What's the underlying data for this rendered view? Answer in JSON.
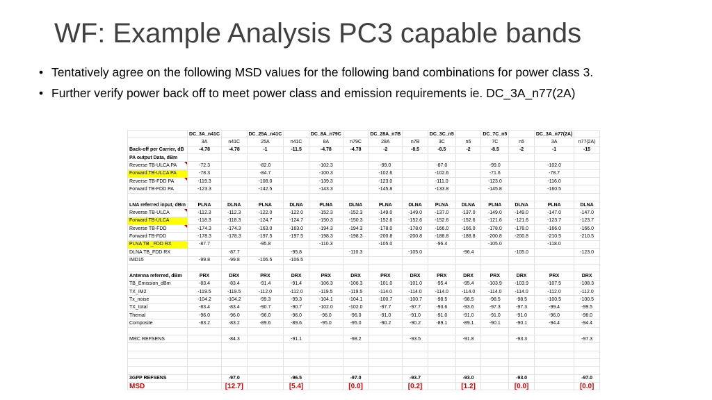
{
  "slide": {
    "title": "WF: Example Analysis PC3 capable bands",
    "bullets": [
      "Tentatively agree on the following MSD values for the following band combinations for power class 3.",
      "Further verify power back off to meet power class and emission requirements ie. DC_3A_n77(2A)"
    ]
  },
  "table": {
    "rows": [
      {
        "style": "b",
        "cells": [
          "",
          "DC_3A_n41C",
          "",
          "DC_25A_n41C",
          "",
          "DC_8A_n79C",
          "",
          "DC_28A_n7B",
          "",
          "DC_3C_n5",
          "",
          "DC_7C_n5",
          "",
          "DC_3A_n77(2A)",
          ""
        ]
      },
      {
        "style": "",
        "cells": [
          "",
          "3A",
          "n41C",
          "25A",
          "n41C",
          "8A",
          "n79C",
          "28A",
          "n7B",
          "3C",
          "n5",
          "7C",
          "n5",
          "3A",
          "n77(2A)"
        ]
      },
      {
        "style": "b",
        "cells": [
          "Back-off per Carrier, dB",
          "-4.78",
          "-4.78",
          "-1",
          "-11.5",
          "-4.78",
          "-4.78",
          "-2",
          "-8.5",
          "-8.5",
          "-2",
          "-8.5",
          "-2",
          "-1",
          "-15"
        ]
      },
      {
        "style": "b",
        "cells": [
          "PA output Data, dBm",
          "",
          "",
          "",
          "",
          "",
          "",
          "",
          "",
          "",
          "",
          "",
          "",
          "",
          ""
        ]
      },
      {
        "style": "tri",
        "cells": [
          "Reverse TB-ULCA PA",
          "-72.3",
          "",
          "-82.0",
          "",
          "-102.3",
          "",
          "-99.0",
          "",
          "-87.0",
          "",
          "-99.0",
          "",
          "-102.0",
          ""
        ]
      },
      {
        "style": "hl",
        "cells": [
          "Forward TB-ULCA PA",
          "-78.3",
          "",
          "-84.7",
          "",
          "-100.3",
          "",
          "-102.6",
          "",
          "-102.6",
          "",
          "-71.6",
          "",
          "-78.7",
          ""
        ]
      },
      {
        "style": "tri",
        "cells": [
          "Reverse TB-FDD PA",
          "-119.3",
          "",
          "-108.0",
          "",
          "-139.3",
          "",
          "-123.0",
          "",
          "-111.0",
          "",
          "-123.0",
          "",
          "-116.0",
          ""
        ]
      },
      {
        "style": "",
        "cells": [
          "Forward TB-FDD PA",
          "-123.3",
          "",
          "-142.5",
          "",
          "-143.3",
          "",
          "-145.8",
          "",
          "-133.8",
          "",
          "-145.8",
          "",
          "-160.5",
          ""
        ]
      },
      {
        "style": "",
        "cells": [
          "",
          "",
          "",
          "",
          "",
          "",
          "",
          "",
          "",
          "",
          "",
          "",
          "",
          "",
          ""
        ]
      },
      {
        "style": "b",
        "cells": [
          "LNA referred input, dBm",
          "PLNA",
          "DLNA",
          "PLNA",
          "DLNA",
          "PLNA",
          "DLNA",
          "PLNA",
          "DLNA",
          "PLNA",
          "DLNA",
          "PLNA",
          "DLNA",
          "PLNA",
          "DLNA"
        ]
      },
      {
        "style": "tri",
        "cells": [
          "Reverse TB-ULCA",
          "-112.3",
          "-112.3",
          "-122.0",
          "-122.0",
          "-152.3",
          "-152.3",
          "-149.0",
          "-149.0",
          "-137.0",
          "-137.0",
          "-149.0",
          "-149.0",
          "-147.0",
          "-147.0"
        ]
      },
      {
        "style": "hl",
        "cells": [
          "Forward TB-ULCA",
          "-118.3",
          "-118.3",
          "-124.7",
          "-124.7",
          "-150.3",
          "-150.3",
          "-152.6",
          "-152.6",
          "-152.6",
          "-152.6",
          "-121.6",
          "-121.6",
          "-123.7",
          "-123.7"
        ]
      },
      {
        "style": "tri",
        "cells": [
          "Reverse TB-FDD",
          "-174.3",
          "-174.3",
          "-163.0",
          "-163.0",
          "-194.3",
          "-194.3",
          "-178.0",
          "-178.0",
          "-166.0",
          "-166.0",
          "-178.0",
          "-178.0",
          "-166.0",
          "-166.0"
        ]
      },
      {
        "style": "",
        "cells": [
          "Forward TB-FDD",
          "-178.3",
          "-178.3",
          "-197.5",
          "-197.5",
          "-198.3",
          "-198.3",
          "-200.8",
          "-200.8",
          "-188.8",
          "-188.8",
          "-200.8",
          "-200.8",
          "-210.5",
          "-210.5"
        ]
      },
      {
        "style": "hl",
        "cells": [
          "PLNA TB _FDD RX",
          "-87.7",
          "",
          "-95.8",
          "",
          "-110.3",
          "",
          "-105.0",
          "",
          "-96.4",
          "",
          "-105.0",
          "",
          "-118.0",
          ""
        ]
      },
      {
        "style": "",
        "cells": [
          "DLNA TB_FDD RX",
          "",
          "-87.7",
          "",
          "-95.8",
          "",
          "-110.3",
          "",
          "-105.0",
          "",
          "-96.4",
          "",
          "-105.0",
          "",
          "-123.0"
        ]
      },
      {
        "style": "",
        "cells": [
          "IMD15",
          "-99.8",
          "-99.8",
          "-106.5",
          "-106.5",
          "",
          "",
          "",
          "",
          "",
          "",
          "",
          "",
          "",
          ""
        ]
      },
      {
        "style": "",
        "cells": [
          "",
          "",
          "",
          "",
          "",
          "",
          "",
          "",
          "",
          "",
          "",
          "",
          "",
          "",
          ""
        ]
      },
      {
        "style": "b",
        "cells": [
          "Antenna referred, dBm",
          "PRX",
          "DRX",
          "PRX",
          "DRX",
          "PRX",
          "DRX",
          "PRX",
          "DRX",
          "PRX",
          "DRX",
          "PRX",
          "DRX",
          "PRX",
          "DRX"
        ]
      },
      {
        "style": "",
        "cells": [
          "TB_Emission_dBm",
          "-83.4",
          "-83.4",
          "-91.4",
          "-91.4",
          "-106.3",
          "-106.3",
          "-101.0",
          "-101.0",
          "-95.4",
          "-95.4",
          "-103.9",
          "-103.9",
          "-107.5",
          "-108.3"
        ]
      },
      {
        "style": "",
        "cells": [
          "TX_IM2",
          "-119.5",
          "-119.5",
          "-112.0",
          "-112.0",
          "-119.5",
          "-119.5",
          "-114.0",
          "-114.0",
          "-114.0",
          "-114.0",
          "-114.0",
          "-114.0",
          "-112.0",
          "-112.0"
        ]
      },
      {
        "style": "",
        "cells": [
          "Tx_noise",
          "-104.2",
          "-104.2",
          "-99.3",
          "-99.3",
          "-104.1",
          "-104.1",
          "-100.7",
          "-100.7",
          "-98.5",
          "-98.5",
          "-98.5",
          "-98.5",
          "-100.5",
          "-100.5"
        ]
      },
      {
        "style": "",
        "cells": [
          "TX_total",
          "-83.4",
          "-83.4",
          "-90.7",
          "-90.7",
          "-102.0",
          "-102.0",
          "-97.7",
          "-97.7",
          "-93.6",
          "-93.6",
          "-97.3",
          "-97.3",
          "-99.4",
          "-99.5"
        ]
      },
      {
        "style": "",
        "cells": [
          "Themal",
          "-96.0",
          "-96.0",
          "-96.0",
          "-96.0",
          "-96.0",
          "-96.0",
          "-91.0",
          "-91.0",
          "-91.0",
          "-91.0",
          "-91.0",
          "-91.0",
          "-96.0",
          "-96.0"
        ]
      },
      {
        "style": "",
        "cells": [
          "Composite",
          "-83.2",
          "-83.2",
          "-89.6",
          "-89.6",
          "-95.0",
          "-95.0",
          "-90.2",
          "-90.2",
          "-89.1",
          "-89.1",
          "-90.1",
          "-90.1",
          "-94.4",
          "-94.4"
        ]
      },
      {
        "style": "",
        "cells": [
          "",
          "",
          "",
          "",
          "",
          "",
          "",
          "",
          "",
          "",
          "",
          "",
          "",
          "",
          ""
        ]
      },
      {
        "style": "",
        "cells": [
          "MRC REFSENS",
          "",
          "-84.3",
          "",
          "-91.1",
          "",
          "-98.2",
          "",
          "-93.5",
          "",
          "-91.8",
          "",
          "-93.3",
          "",
          "-97.3"
        ]
      },
      {
        "style": "",
        "cells": [
          "",
          "",
          "",
          "",
          "",
          "",
          "",
          "",
          "",
          "",
          "",
          "",
          "",
          "",
          ""
        ]
      },
      {
        "style": "",
        "cells": [
          "",
          "",
          "",
          "",
          "",
          "",
          "",
          "",
          "",
          "",
          "",
          "",
          "",
          "",
          ""
        ]
      },
      {
        "style": "",
        "cells": [
          "",
          "",
          "",
          "",
          "",
          "",
          "",
          "",
          "",
          "",
          "",
          "",
          "",
          "",
          ""
        ]
      },
      {
        "style": "",
        "cells": [
          "",
          "",
          "",
          "",
          "",
          "",
          "",
          "",
          "",
          "",
          "",
          "",
          "",
          "",
          ""
        ]
      },
      {
        "style": "b",
        "cells": [
          "3GPP REFSENS",
          "",
          "-97.0",
          "",
          "-96.5",
          "",
          "-97.0",
          "",
          "-93.7",
          "",
          "-93.0",
          "",
          "-93.0",
          "",
          "-97.0"
        ]
      },
      {
        "style": "red",
        "cells": [
          "MSD",
          "",
          "[12.7]",
          "",
          "[5.4]",
          "",
          "[0.0]",
          "",
          "[0.2]",
          "",
          "[1.2]",
          "",
          "[0.0]",
          "",
          "[0.0]"
        ]
      }
    ]
  }
}
